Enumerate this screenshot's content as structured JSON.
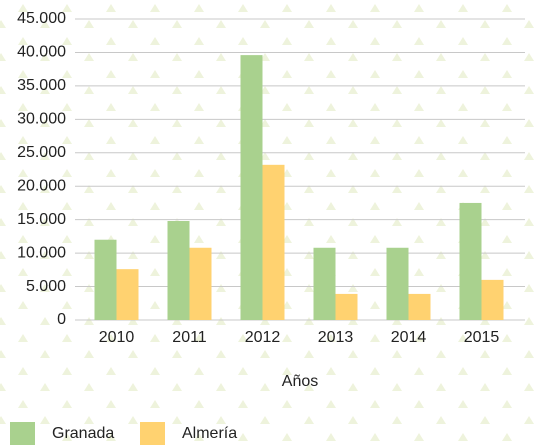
{
  "chart_data": {
    "type": "bar",
    "x_label": "Años",
    "categories": [
      "2010",
      "2011",
      "2012",
      "2013",
      "2014",
      "2015"
    ],
    "series": [
      {
        "name": "Granada",
        "color": "#a9d18e",
        "values": [
          12000,
          14800,
          39600,
          10800,
          10800,
          17500
        ]
      },
      {
        "name": "Almería",
        "color": "#ffd270",
        "values": [
          7600,
          10800,
          23200,
          3900,
          3900,
          6000
        ]
      }
    ],
    "ylim": [
      0,
      45000
    ],
    "yticks": [
      0,
      {
        "value": 5000,
        "label": "5.000"
      },
      {
        "value": 10000,
        "label": "10.000"
      },
      {
        "value": 15000,
        "label": "15.000"
      },
      {
        "value": 20000,
        "label": "20.000"
      },
      {
        "value": 25000,
        "label": "25.000"
      },
      {
        "value": 30000,
        "label": "30.000"
      },
      {
        "value": 35000,
        "label": "35.000"
      },
      {
        "value": 40000,
        "label": "40.000"
      },
      {
        "value": 45000,
        "label": "45.000"
      }
    ],
    "grid": true,
    "legend": "bottom-left"
  }
}
